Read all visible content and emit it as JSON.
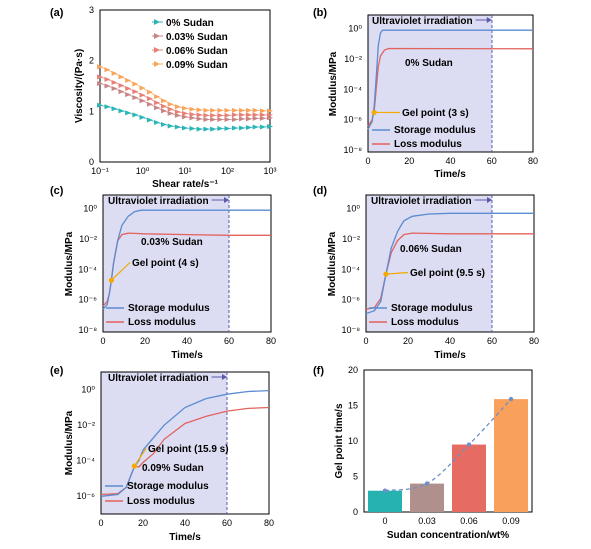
{
  "colors": {
    "storage": "#5B8BD0",
    "loss": "#E2625E",
    "gel": "#F2A900",
    "sudan_label": "#F4A460",
    "uv_fill": "#DCDDF2",
    "uv_edge": "#5A5AA8",
    "c0": "#2BB5B8",
    "c003": "#C88586",
    "c006": "#E88076",
    "c009": "#FAA45B",
    "bar0": "#26B3B0",
    "bar003": "#B0908C",
    "bar006": "#E56B63",
    "bar009": "#F9A05A",
    "fit": "#6F8FC8"
  },
  "chart_data": [
    {
      "id": "a",
      "panel_label": "(a)",
      "type": "line",
      "xlabel": "Shear rate/s⁻¹",
      "ylabel": "Viscosity/(Pa·s)",
      "xscale": "log",
      "xlim": [
        0.1,
        1000
      ],
      "ylim": [
        0,
        3
      ],
      "xticks": [
        "10⁻¹",
        "10⁰",
        "10¹",
        "10²",
        "10³"
      ],
      "yticks": [
        "0",
        "1",
        "2",
        "3"
      ],
      "legend_position": "top-right",
      "x": [
        0.1,
        0.15,
        0.22,
        0.32,
        0.46,
        0.68,
        1,
        1.5,
        2.2,
        3.2,
        4.6,
        6.8,
        10,
        15,
        22,
        32,
        46,
        68,
        100,
        150,
        220,
        320,
        460,
        680,
        1000
      ],
      "series": [
        {
          "name": "0% Sudan",
          "color_key": "c0",
          "values": [
            1.12,
            1.09,
            1.05,
            1.01,
            0.97,
            0.93,
            0.88,
            0.83,
            0.78,
            0.74,
            0.71,
            0.69,
            0.67,
            0.66,
            0.65,
            0.65,
            0.65,
            0.66,
            0.66,
            0.67,
            0.67,
            0.68,
            0.69,
            0.69,
            0.7
          ]
        },
        {
          "name": "0.03% Sudan",
          "color_key": "c003",
          "values": [
            1.55,
            1.5,
            1.45,
            1.39,
            1.33,
            1.27,
            1.21,
            1.14,
            1.07,
            1.01,
            0.96,
            0.92,
            0.89,
            0.87,
            0.85,
            0.84,
            0.84,
            0.84,
            0.84,
            0.84,
            0.85,
            0.85,
            0.86,
            0.86,
            0.87
          ]
        },
        {
          "name": "0.06% Sudan",
          "color_key": "c006",
          "values": [
            1.68,
            1.63,
            1.57,
            1.51,
            1.45,
            1.39,
            1.32,
            1.25,
            1.17,
            1.1,
            1.04,
            0.99,
            0.96,
            0.94,
            0.93,
            0.92,
            0.92,
            0.92,
            0.92,
            0.93,
            0.93,
            0.93,
            0.93,
            0.93,
            0.93
          ]
        },
        {
          "name": "0.09% Sudan",
          "color_key": "c009",
          "values": [
            1.88,
            1.82,
            1.75,
            1.68,
            1.61,
            1.54,
            1.46,
            1.38,
            1.29,
            1.21,
            1.14,
            1.09,
            1.06,
            1.04,
            1.03,
            1.02,
            1.02,
            1.02,
            1.02,
            1.02,
            1.02,
            1.02,
            1.02,
            1.01,
            1.01
          ]
        }
      ]
    },
    {
      "id": "b",
      "panel_label": "(b)",
      "type": "line",
      "xlabel": "Time/s",
      "ylabel": "Modulus/MPa",
      "xlim": [
        0,
        80
      ],
      "yscale": "log",
      "ylim_exp": [
        -8,
        1
      ],
      "xticks": [
        "0",
        "20",
        "40",
        "60",
        "80"
      ],
      "yticks": [
        "10⁰",
        "10⁻²",
        "10⁻⁴",
        "10⁻⁶",
        "10⁻⁸"
      ],
      "uv_region": [
        0,
        60
      ],
      "uv_label": "Ultraviolet irradiation",
      "sample_label": "0% Sudan",
      "gel_point_label": "Gel point (3 s)",
      "gel_point_time": 3,
      "gel_point_log_modulus": -5.4,
      "legend": [
        "Storage modulus",
        "Loss modulus"
      ],
      "storage_log": [
        [
          0,
          -6.5
        ],
        [
          2,
          -6.0
        ],
        [
          3,
          -5.0
        ],
        [
          4,
          -3.0
        ],
        [
          5,
          -1.0
        ],
        [
          6,
          -0.2
        ],
        [
          7,
          0.0
        ],
        [
          10,
          0.0
        ],
        [
          80,
          0.0
        ]
      ],
      "loss_log": [
        [
          0,
          -6.3
        ],
        [
          2,
          -5.9
        ],
        [
          3,
          -5.3
        ],
        [
          4,
          -3.8
        ],
        [
          5,
          -2.4
        ],
        [
          6,
          -1.7
        ],
        [
          8,
          -1.3
        ],
        [
          10,
          -1.2
        ],
        [
          80,
          -1.22
        ]
      ]
    },
    {
      "id": "c",
      "panel_label": "(c)",
      "type": "line",
      "xlabel": "Time/s",
      "ylabel": "Modulus/MPa",
      "xlim": [
        0,
        80
      ],
      "yscale": "log",
      "ylim_exp": [
        -8,
        1
      ],
      "xticks": [
        "0",
        "20",
        "40",
        "60",
        "80"
      ],
      "yticks": [
        "10⁰",
        "10⁻²",
        "10⁻⁴",
        "10⁻⁶",
        "10⁻⁸"
      ],
      "uv_region": [
        0,
        60
      ],
      "uv_label": "Ultraviolet irradiation",
      "sample_label": "0.03% Sudan",
      "gel_point_label": "Gel point (4 s)",
      "gel_point_time": 4,
      "gel_point_log_modulus": -4.6,
      "legend": [
        "Storage modulus",
        "Loss modulus"
      ],
      "storage_log": [
        [
          0,
          -6.5
        ],
        [
          2,
          -6.2
        ],
        [
          3,
          -5.5
        ],
        [
          4,
          -4.6
        ],
        [
          5,
          -3.5
        ],
        [
          7,
          -2.0
        ],
        [
          9,
          -1.0
        ],
        [
          12,
          -0.4
        ],
        [
          15,
          -0.1
        ],
        [
          18,
          0.0
        ],
        [
          80,
          0.0
        ]
      ],
      "loss_log": [
        [
          0,
          -6.3
        ],
        [
          2,
          -6.0
        ],
        [
          3,
          -5.5
        ],
        [
          4,
          -4.6
        ],
        [
          5,
          -3.5
        ],
        [
          7,
          -2.0
        ],
        [
          9,
          -1.6
        ],
        [
          12,
          -1.5
        ],
        [
          20,
          -1.55
        ],
        [
          40,
          -1.6
        ],
        [
          60,
          -1.65
        ],
        [
          80,
          -1.65
        ]
      ]
    },
    {
      "id": "d",
      "panel_label": "(d)",
      "type": "line",
      "xlabel": "Time/s",
      "ylabel": "Modulus/MPa",
      "xlim": [
        0,
        80
      ],
      "yscale": "log",
      "ylim_exp": [
        -8,
        1
      ],
      "xticks": [
        "0",
        "20",
        "40",
        "60",
        "80"
      ],
      "yticks": [
        "10⁰",
        "10⁻²",
        "10⁻⁴",
        "10⁻⁶",
        "10⁻⁸"
      ],
      "uv_region": [
        0,
        60
      ],
      "uv_label": "Ultraviolet irradiation",
      "sample_label": "0.06% Sudan",
      "gel_point_label": "Gel point (9.5 s)",
      "gel_point_time": 9.5,
      "gel_point_log_modulus": -4.2,
      "legend": [
        "Storage modulus",
        "Loss modulus"
      ],
      "storage_log": [
        [
          0,
          -6.8
        ],
        [
          4,
          -6.6
        ],
        [
          7,
          -6.0
        ],
        [
          9.5,
          -4.2
        ],
        [
          12,
          -2.5
        ],
        [
          15,
          -1.4
        ],
        [
          18,
          -0.7
        ],
        [
          22,
          -0.4
        ],
        [
          30,
          -0.25
        ],
        [
          40,
          -0.2
        ],
        [
          80,
          -0.2
        ]
      ],
      "loss_log": [
        [
          0,
          -6.5
        ],
        [
          4,
          -6.4
        ],
        [
          7,
          -5.8
        ],
        [
          9.5,
          -4.2
        ],
        [
          12,
          -2.8
        ],
        [
          15,
          -2.0
        ],
        [
          18,
          -1.6
        ],
        [
          22,
          -1.5
        ],
        [
          40,
          -1.55
        ],
        [
          80,
          -1.55
        ]
      ]
    },
    {
      "id": "e",
      "panel_label": "(e)",
      "type": "line",
      "xlabel": "Time/s",
      "ylabel": "Modulus/MPa",
      "xlim": [
        0,
        80
      ],
      "yscale": "log",
      "ylim_exp": [
        -7,
        1
      ],
      "xticks": [
        "0",
        "20",
        "40",
        "60",
        "80"
      ],
      "yticks": [
        "10⁰",
        "10⁻²",
        "10⁻⁴",
        "10⁻⁶"
      ],
      "uv_region": [
        0,
        60
      ],
      "uv_label": "Ultraviolet irradiation",
      "sample_label": "0.09% Sudan",
      "gel_point_label": "Gel point (15.9 s)",
      "gel_point_time": 15.9,
      "gel_point_log_modulus": -4.3,
      "legend": [
        "Storage modulus",
        "Loss modulus"
      ],
      "storage_log": [
        [
          0,
          -6.0
        ],
        [
          8,
          -5.9
        ],
        [
          12,
          -5.5
        ],
        [
          14,
          -4.9
        ],
        [
          16,
          -4.3
        ],
        [
          18,
          -4.0
        ],
        [
          20,
          -3.4
        ],
        [
          25,
          -2.7
        ],
        [
          30,
          -2.0
        ],
        [
          40,
          -1.0
        ],
        [
          50,
          -0.5
        ],
        [
          60,
          -0.25
        ],
        [
          70,
          -0.1
        ],
        [
          80,
          -0.05
        ]
      ],
      "loss_log": [
        [
          0,
          -5.9
        ],
        [
          8,
          -5.85
        ],
        [
          12,
          -5.5
        ],
        [
          14,
          -4.9
        ],
        [
          16,
          -4.3
        ],
        [
          18,
          -4.35
        ],
        [
          20,
          -4.1
        ],
        [
          25,
          -3.6
        ],
        [
          30,
          -2.8
        ],
        [
          40,
          -1.9
        ],
        [
          50,
          -1.5
        ],
        [
          60,
          -1.2
        ],
        [
          70,
          -1.05
        ],
        [
          80,
          -1.0
        ]
      ]
    },
    {
      "id": "f",
      "panel_label": "(f)",
      "type": "bar",
      "xlabel": "Sudan concentration/wt%",
      "ylabel": "Gel point time/s",
      "categories": [
        "0",
        "0.03",
        "0.06",
        "0.09"
      ],
      "values": [
        3,
        4,
        9.5,
        15.9
      ],
      "ylim": [
        0,
        20
      ],
      "yticks": [
        "0",
        "5",
        "10",
        "15",
        "20"
      ],
      "fit_curve": true
    }
  ]
}
